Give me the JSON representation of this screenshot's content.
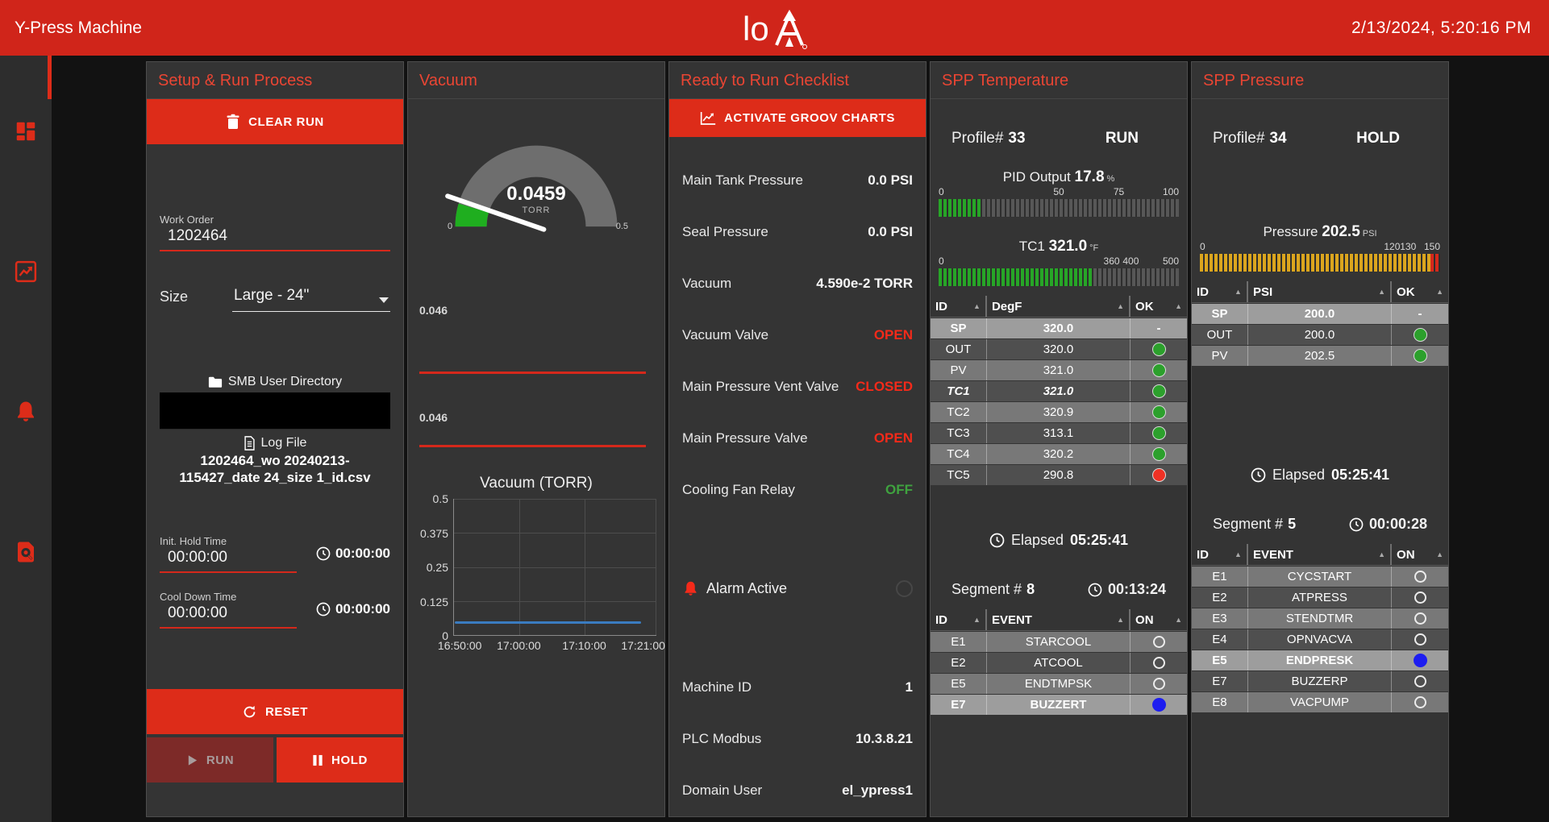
{
  "topbar": {
    "title": "Y-Press Machine",
    "datetime": "2/13/2024, 5:20:16 PM",
    "logo_text": "lo"
  },
  "sidebar": {
    "items": [
      {
        "icon": "dashboard-grid-icon",
        "active": true
      },
      {
        "icon": "trend-chart-icon",
        "active": false
      },
      {
        "icon": "alarm-bell-icon",
        "active": false
      },
      {
        "icon": "log-search-icon",
        "active": false
      }
    ]
  },
  "setup": {
    "title": "Setup & Run Process",
    "clear_run_label": "CLEAR RUN",
    "work_order": {
      "label": "Work Order",
      "value": "1202464"
    },
    "size": {
      "label": "Size",
      "value": "Large - 24\""
    },
    "smb_label": "SMB User Directory",
    "log_file_label": "Log File",
    "log_file_name": "1202464_wo 20240213-115427_date 24_size 1_id.csv",
    "init_hold": {
      "label": "Init. Hold Time",
      "value": "00:00:00",
      "timer": "00:00:00"
    },
    "cool_down": {
      "label": "Cool Down Time",
      "value": "00:00:00",
      "timer": "00:00:00"
    },
    "reset_label": "RESET",
    "run_label": "RUN",
    "hold_label": "HOLD"
  },
  "vacuum": {
    "title": "Vacuum",
    "gauge": {
      "value": "0.0459",
      "unit": "TORR",
      "min": "0",
      "max": "0.5"
    },
    "trends": [
      {
        "value": "0.046"
      },
      {
        "value": "0.046"
      }
    ],
    "chart_data": {
      "type": "line",
      "title": "Vacuum (TORR)",
      "x_ticks": [
        "16:50:00",
        "17:00:00",
        "17:10:00",
        "17:21:00"
      ],
      "y_ticks": [
        "0.5",
        "0.375",
        "0.25",
        "0.125",
        "0"
      ],
      "ylim": [
        0,
        0.5
      ],
      "grid": true,
      "legend": "none",
      "series": [
        {
          "name": "Vacuum",
          "color": "#3a7cc0",
          "approx_flat_value": 0.046
        }
      ]
    }
  },
  "checklist": {
    "title": "Ready to Run Checklist",
    "activate_label": "ACTIVATE GROOV CHARTS",
    "rows": [
      {
        "label": "Main Tank Pressure",
        "value": "0.0 PSI",
        "style": "white"
      },
      {
        "label": "Seal Pressure",
        "value": "0.0 PSI",
        "style": "white"
      },
      {
        "label": "Vacuum",
        "value": "4.590e-2 TORR",
        "style": "white"
      },
      {
        "label": "Vacuum Valve",
        "value": "OPEN",
        "style": "red"
      },
      {
        "label": "Main Pressure Vent Valve",
        "value": "CLOSED",
        "style": "red"
      },
      {
        "label": "Main Pressure Valve",
        "value": "OPEN",
        "style": "red"
      },
      {
        "label": "Cooling Fan Relay",
        "value": "OFF",
        "style": "green"
      }
    ],
    "alarm_label": "Alarm Active",
    "info_rows": [
      {
        "label": "Machine ID",
        "value": "1",
        "style": "white"
      },
      {
        "label": "PLC Modbus",
        "value": "10.3.8.21",
        "style": "white"
      },
      {
        "label": "Domain User",
        "value": "el_ypress1",
        "style": "white"
      }
    ]
  },
  "spp_temperature": {
    "title": "SPP Temperature",
    "profile_label": "Profile#",
    "profile_value": "33",
    "status": "RUN",
    "gauges": [
      {
        "label": "PID Output",
        "value": "17.8",
        "unit": "%",
        "min": 0,
        "max": 100,
        "ticks": [
          0,
          50,
          75,
          100
        ],
        "value_pct": 17.8,
        "color": "green",
        "over_tail": false
      },
      {
        "label": "TC1",
        "value": "321.0",
        "unit": "°F",
        "min": 0,
        "max": 500,
        "ticks": [
          0,
          360,
          400,
          500
        ],
        "value_pct": 64.2,
        "color": "green",
        "over_tail": false
      }
    ],
    "table": {
      "headers": [
        "ID",
        "DegF",
        "OK"
      ],
      "rows": [
        {
          "id": "SP",
          "value": "320.0",
          "ok": "-",
          "hl": true
        },
        {
          "id": "OUT",
          "value": "320.0",
          "ok": "green"
        },
        {
          "id": "PV",
          "value": "321.0",
          "ok": "green"
        },
        {
          "id": "TC1",
          "value": "321.0",
          "ok": "green",
          "em": true
        },
        {
          "id": "TC2",
          "value": "320.9",
          "ok": "green"
        },
        {
          "id": "TC3",
          "value": "313.1",
          "ok": "green"
        },
        {
          "id": "TC4",
          "value": "320.2",
          "ok": "green"
        },
        {
          "id": "TC5",
          "value": "290.8",
          "ok": "red"
        }
      ]
    },
    "elapsed_label": "Elapsed",
    "elapsed": "05:25:41",
    "segment_label": "Segment #",
    "segment": "8",
    "segment_time": "00:13:24",
    "events": {
      "headers": [
        "ID",
        "EVENT",
        "ON"
      ],
      "rows": [
        {
          "id": "E1",
          "event": "STARCOOL",
          "on": false
        },
        {
          "id": "E2",
          "event": "ATCOOL",
          "on": false
        },
        {
          "id": "E5",
          "event": "ENDTMPSK",
          "on": false
        },
        {
          "id": "E7",
          "event": "BUZZERT",
          "on": true,
          "hl": true
        }
      ]
    }
  },
  "spp_pressure": {
    "title": "SPP Pressure",
    "profile_label": "Profile#",
    "profile_value": "34",
    "status": "HOLD",
    "gauges": [
      {
        "label": "Pressure",
        "value": "202.5",
        "unit": "PSI",
        "min": 0,
        "max": 150,
        "ticks": [
          0,
          120,
          130,
          150
        ],
        "value_pct": 100,
        "color": "yellow",
        "over_tail": true
      }
    ],
    "table": {
      "headers": [
        "ID",
        "PSI",
        "OK"
      ],
      "rows": [
        {
          "id": "SP",
          "value": "200.0",
          "ok": "-",
          "hl": true
        },
        {
          "id": "OUT",
          "value": "200.0",
          "ok": "green"
        },
        {
          "id": "PV",
          "value": "202.5",
          "ok": "green"
        }
      ]
    },
    "elapsed_label": "Elapsed",
    "elapsed": "05:25:41",
    "segment_label": "Segment #",
    "segment": "5",
    "segment_time": "00:00:28",
    "events": {
      "headers": [
        "ID",
        "EVENT",
        "ON"
      ],
      "rows": [
        {
          "id": "E1",
          "event": "CYCSTART",
          "on": false
        },
        {
          "id": "E2",
          "event": "ATPRESS",
          "on": false
        },
        {
          "id": "E3",
          "event": "STENDTMR",
          "on": false
        },
        {
          "id": "E4",
          "event": "OPNVACVA",
          "on": false
        },
        {
          "id": "E5",
          "event": "ENDPRESK",
          "on": true,
          "hl": true
        },
        {
          "id": "E7",
          "event": "BUZZERP",
          "on": false
        },
        {
          "id": "E8",
          "event": "VACPUMP",
          "on": false
        }
      ]
    }
  },
  "colors": {
    "accent_red": "#dd2c19",
    "topbar_red": "#d0251a",
    "ok_green": "#2ca02c",
    "alarm_red": "#ee3124",
    "event_blue": "#1d1df0",
    "gauge_yellow": "#dba51e",
    "chart_line_blue": "#3a7cc0"
  }
}
